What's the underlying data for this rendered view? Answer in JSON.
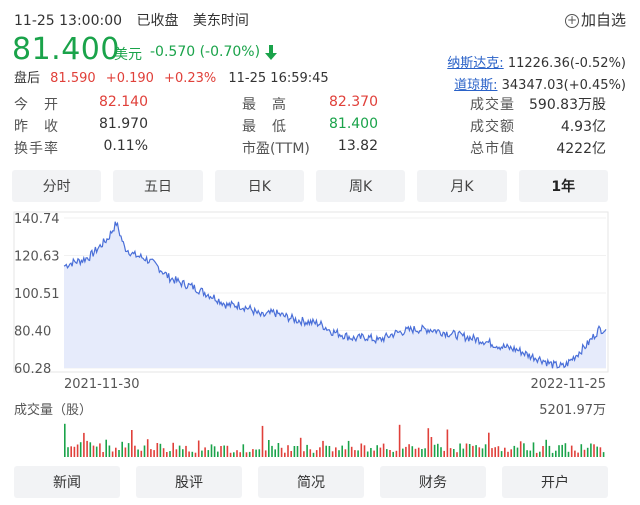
{
  "header": {
    "datetime": "11-25 13:00:00",
    "status": "已收盘",
    "timezone": "美东时间",
    "add_watch": "加自选"
  },
  "quote": {
    "price": "81.400",
    "currency": "美元",
    "change": "-0.570 (-0.70%)",
    "direction": "down",
    "color_down": "#1aa34a",
    "color_up": "#e0403a"
  },
  "after_hours": {
    "label": "盘后",
    "price": "81.590",
    "change": "+0.190",
    "change_pct": "+0.23%",
    "time": "11-25 16:59:45"
  },
  "indices": [
    {
      "name": "纳斯达克:",
      "value": "11226.36(-0.52%)"
    },
    {
      "name": "道琼斯:",
      "value": "34347.03(+0.45%)"
    }
  ],
  "stats": {
    "col1": [
      {
        "label": "今　开",
        "value": "82.140",
        "color": "#e0403a"
      },
      {
        "label": "昨　收",
        "value": "81.970",
        "color": "#333333"
      },
      {
        "label": "换手率",
        "value": "0.11%",
        "color": "#333333"
      }
    ],
    "col2": [
      {
        "label": "最　高",
        "value": "82.370",
        "color": "#e0403a"
      },
      {
        "label": "最　低",
        "value": "81.400",
        "color": "#1aa34a"
      },
      {
        "label": "市盈(TTM)",
        "value": "13.82",
        "color": "#333333"
      }
    ],
    "col3": [
      {
        "label": "成交量",
        "value": "590.83万股",
        "color": "#333333"
      },
      {
        "label": "成交额",
        "value": "4.93亿",
        "color": "#333333"
      },
      {
        "label": "总市值",
        "value": "4222亿",
        "color": "#333333"
      }
    ]
  },
  "tabs": [
    {
      "label": "分时",
      "active": false
    },
    {
      "label": "五日",
      "active": false
    },
    {
      "label": "日K",
      "active": false
    },
    {
      "label": "周K",
      "active": false
    },
    {
      "label": "月K",
      "active": false
    },
    {
      "label": "1年",
      "active": true
    }
  ],
  "chart_data": {
    "type": "area",
    "y_ticks": [
      "140.74",
      "120.63",
      "100.51",
      "80.40",
      "60.28"
    ],
    "ylim": [
      60.28,
      140.74
    ],
    "x_start_label": "2021-11-30",
    "x_end_label": "2022-11-25",
    "line_color": "#4a6fd8",
    "fill_color": "#e6ebfb",
    "price_anchors": [
      [
        0,
        115
      ],
      [
        8,
        117
      ],
      [
        15,
        118
      ],
      [
        22,
        120
      ],
      [
        30,
        125
      ],
      [
        38,
        130
      ],
      [
        45,
        138
      ],
      [
        52,
        125
      ],
      [
        60,
        121
      ],
      [
        70,
        119
      ],
      [
        80,
        115
      ],
      [
        90,
        109
      ],
      [
        100,
        106
      ],
      [
        110,
        104
      ],
      [
        120,
        101
      ],
      [
        130,
        98
      ],
      [
        140,
        94
      ],
      [
        150,
        94
      ],
      [
        160,
        92
      ],
      [
        170,
        88
      ],
      [
        180,
        90
      ],
      [
        190,
        88
      ],
      [
        200,
        86
      ],
      [
        210,
        85
      ],
      [
        220,
        84
      ],
      [
        230,
        80
      ],
      [
        240,
        78
      ],
      [
        250,
        76
      ],
      [
        260,
        77
      ],
      [
        270,
        75
      ],
      [
        285,
        79
      ],
      [
        300,
        81
      ],
      [
        315,
        81
      ],
      [
        330,
        79
      ],
      [
        345,
        77
      ],
      [
        360,
        75
      ],
      [
        375,
        72
      ],
      [
        390,
        70
      ],
      [
        400,
        67
      ],
      [
        410,
        65
      ],
      [
        420,
        62
      ],
      [
        430,
        61
      ],
      [
        440,
        67
      ],
      [
        450,
        73
      ],
      [
        460,
        81
      ],
      [
        466,
        81
      ]
    ],
    "volume_label": "成交量（股）",
    "volume_max_label": "5201.97万"
  },
  "bottom_nav": [
    "新闻",
    "股评",
    "简况",
    "财务",
    "开户"
  ]
}
